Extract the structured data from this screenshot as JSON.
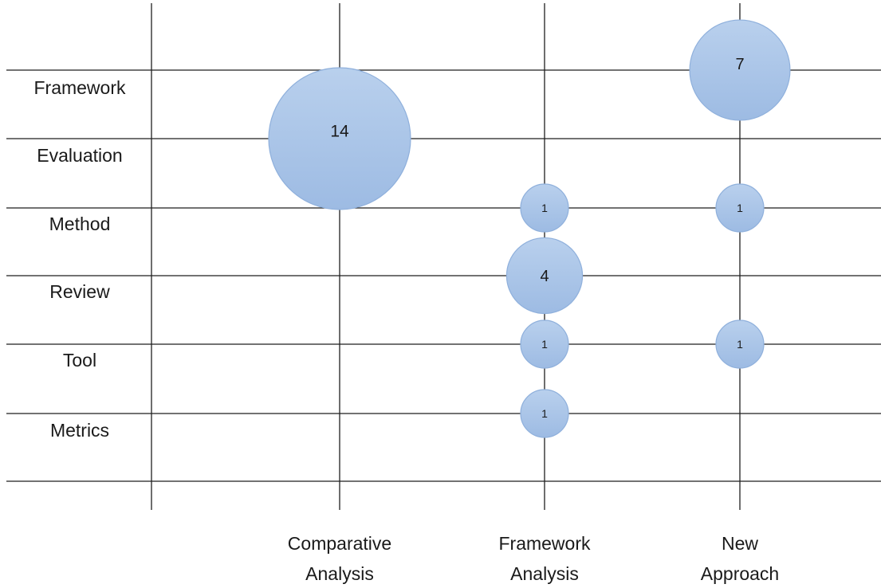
{
  "chart_data": {
    "type": "bubble",
    "title": "",
    "xlabel": "",
    "ylabel": "",
    "categories_x": [
      {
        "key": "comparative",
        "lines": [
          "Comparative",
          "Analysis"
        ]
      },
      {
        "key": "framework_analysis",
        "lines": [
          "Framework",
          "Analysis"
        ]
      },
      {
        "key": "new_approach",
        "lines": [
          "New",
          "Approach"
        ]
      }
    ],
    "categories_y": [
      "Framework",
      "Evaluation",
      "Method",
      "Review",
      "Tool",
      "Metrics"
    ],
    "points": [
      {
        "x": "Comparative Analysis",
        "y": "Evaluation",
        "value": 14
      },
      {
        "x": "New Approach",
        "y": "Framework",
        "value": 7
      },
      {
        "x": "Framework Analysis",
        "y": "Method",
        "value": 1
      },
      {
        "x": "New Approach",
        "y": "Method",
        "value": 1
      },
      {
        "x": "Framework Analysis",
        "y": "Review",
        "value": 4
      },
      {
        "x": "Framework Analysis",
        "y": "Tool",
        "value": 1
      },
      {
        "x": "New Approach",
        "y": "Tool",
        "value": 1
      },
      {
        "x": "Framework Analysis",
        "y": "Metrics",
        "value": 1
      }
    ],
    "bubble_color": "#a7c2e6",
    "bubble_stroke": "#8fb0dc",
    "grid": true,
    "legend": "none"
  }
}
